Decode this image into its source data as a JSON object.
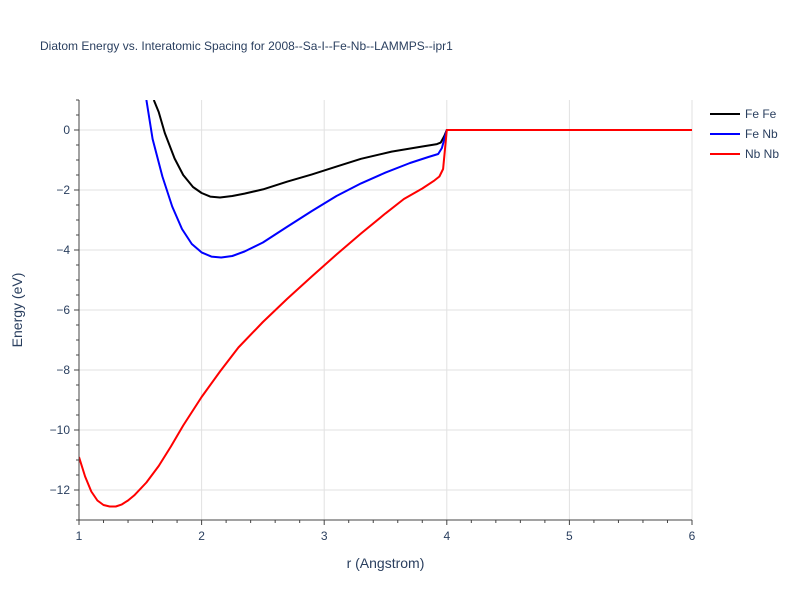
{
  "chart_data": {
    "type": "line",
    "title": "Diatom Energy vs. Interatomic Spacing for 2008--Sa-I--Fe-Nb--LAMMPS--ipr1",
    "xlabel": "r (Angstrom)",
    "ylabel": "Energy (eV)",
    "xlim": [
      1,
      6
    ],
    "ylim": [
      -13,
      1
    ],
    "xticks": [
      1,
      2,
      3,
      4,
      5,
      6
    ],
    "yticks": [
      0,
      -2,
      -4,
      -6,
      -8,
      -10,
      -12
    ],
    "grid": true,
    "legend_position": "top-right",
    "series": [
      {
        "name": "Fe Fe",
        "color": "#000000",
        "x": [
          1.61,
          1.65,
          1.7,
          1.78,
          1.85,
          1.93,
          2.0,
          2.07,
          2.15,
          2.25,
          2.35,
          2.5,
          2.7,
          2.9,
          3.1,
          3.3,
          3.55,
          3.8,
          3.92,
          3.95,
          3.98,
          4.0,
          4.1,
          4.5,
          5.0,
          5.5,
          6.0
        ],
        "y": [
          1.0,
          0.6,
          -0.1,
          -0.95,
          -1.5,
          -1.9,
          -2.1,
          -2.22,
          -2.25,
          -2.2,
          -2.12,
          -1.98,
          -1.72,
          -1.48,
          -1.22,
          -0.96,
          -0.72,
          -0.55,
          -0.47,
          -0.42,
          -0.2,
          0.0,
          0.0,
          0.0,
          0.0,
          0.0,
          0.0
        ]
      },
      {
        "name": "Fe Nb",
        "color": "#0000ff",
        "x": [
          1.55,
          1.6,
          1.68,
          1.76,
          1.84,
          1.92,
          2.0,
          2.08,
          2.16,
          2.25,
          2.35,
          2.5,
          2.7,
          2.9,
          3.1,
          3.3,
          3.5,
          3.7,
          3.85,
          3.93,
          3.96,
          4.0,
          4.1,
          4.5,
          5.0,
          5.5,
          6.0
        ],
        "y": [
          1.0,
          -0.3,
          -1.55,
          -2.55,
          -3.3,
          -3.8,
          -4.08,
          -4.22,
          -4.25,
          -4.2,
          -4.05,
          -3.75,
          -3.22,
          -2.7,
          -2.2,
          -1.78,
          -1.42,
          -1.1,
          -0.9,
          -0.8,
          -0.6,
          0.0,
          0.0,
          0.0,
          0.0,
          0.0,
          0.0
        ]
      },
      {
        "name": "Nb Nb",
        "color": "#ff0000",
        "x": [
          1.0,
          1.05,
          1.1,
          1.15,
          1.2,
          1.25,
          1.3,
          1.35,
          1.4,
          1.45,
          1.55,
          1.65,
          1.75,
          1.85,
          2.0,
          2.15,
          2.3,
          2.5,
          2.7,
          2.9,
          3.1,
          3.3,
          3.5,
          3.65,
          3.8,
          3.9,
          3.94,
          3.97,
          4.0,
          4.1,
          4.5,
          5.0,
          5.5,
          6.0
        ],
        "y": [
          -10.9,
          -11.55,
          -12.05,
          -12.35,
          -12.5,
          -12.55,
          -12.55,
          -12.48,
          -12.35,
          -12.18,
          -11.75,
          -11.2,
          -10.55,
          -9.85,
          -8.9,
          -8.05,
          -7.25,
          -6.4,
          -5.62,
          -4.88,
          -4.15,
          -3.45,
          -2.78,
          -2.3,
          -1.95,
          -1.68,
          -1.55,
          -1.3,
          0.0,
          0.0,
          0.0,
          0.0,
          0.0,
          0.0
        ]
      }
    ]
  }
}
